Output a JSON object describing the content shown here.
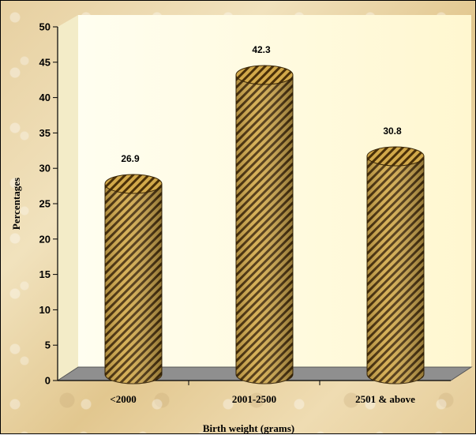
{
  "chart_data": {
    "type": "bar",
    "style": "3d-cylinder",
    "categories": [
      "<2000",
      "2001-2500",
      "2501 & above"
    ],
    "values": [
      26.9,
      42.3,
      30.8
    ],
    "data_labels": [
      "26.9",
      "42.3",
      "30.8"
    ],
    "xlabel": "Birth weight (grams)",
    "ylabel": "Percentages",
    "ylim": [
      0,
      50
    ],
    "yticks": [
      0,
      5,
      10,
      15,
      20,
      25,
      30,
      35,
      40,
      45,
      50
    ],
    "grid": false,
    "legend": "none",
    "colors": {
      "bar_fill": "#d2a94a",
      "bar_hatch": "#4a3008",
      "floor": "#8f8f8f",
      "back_wall": "#fffbe0"
    }
  }
}
